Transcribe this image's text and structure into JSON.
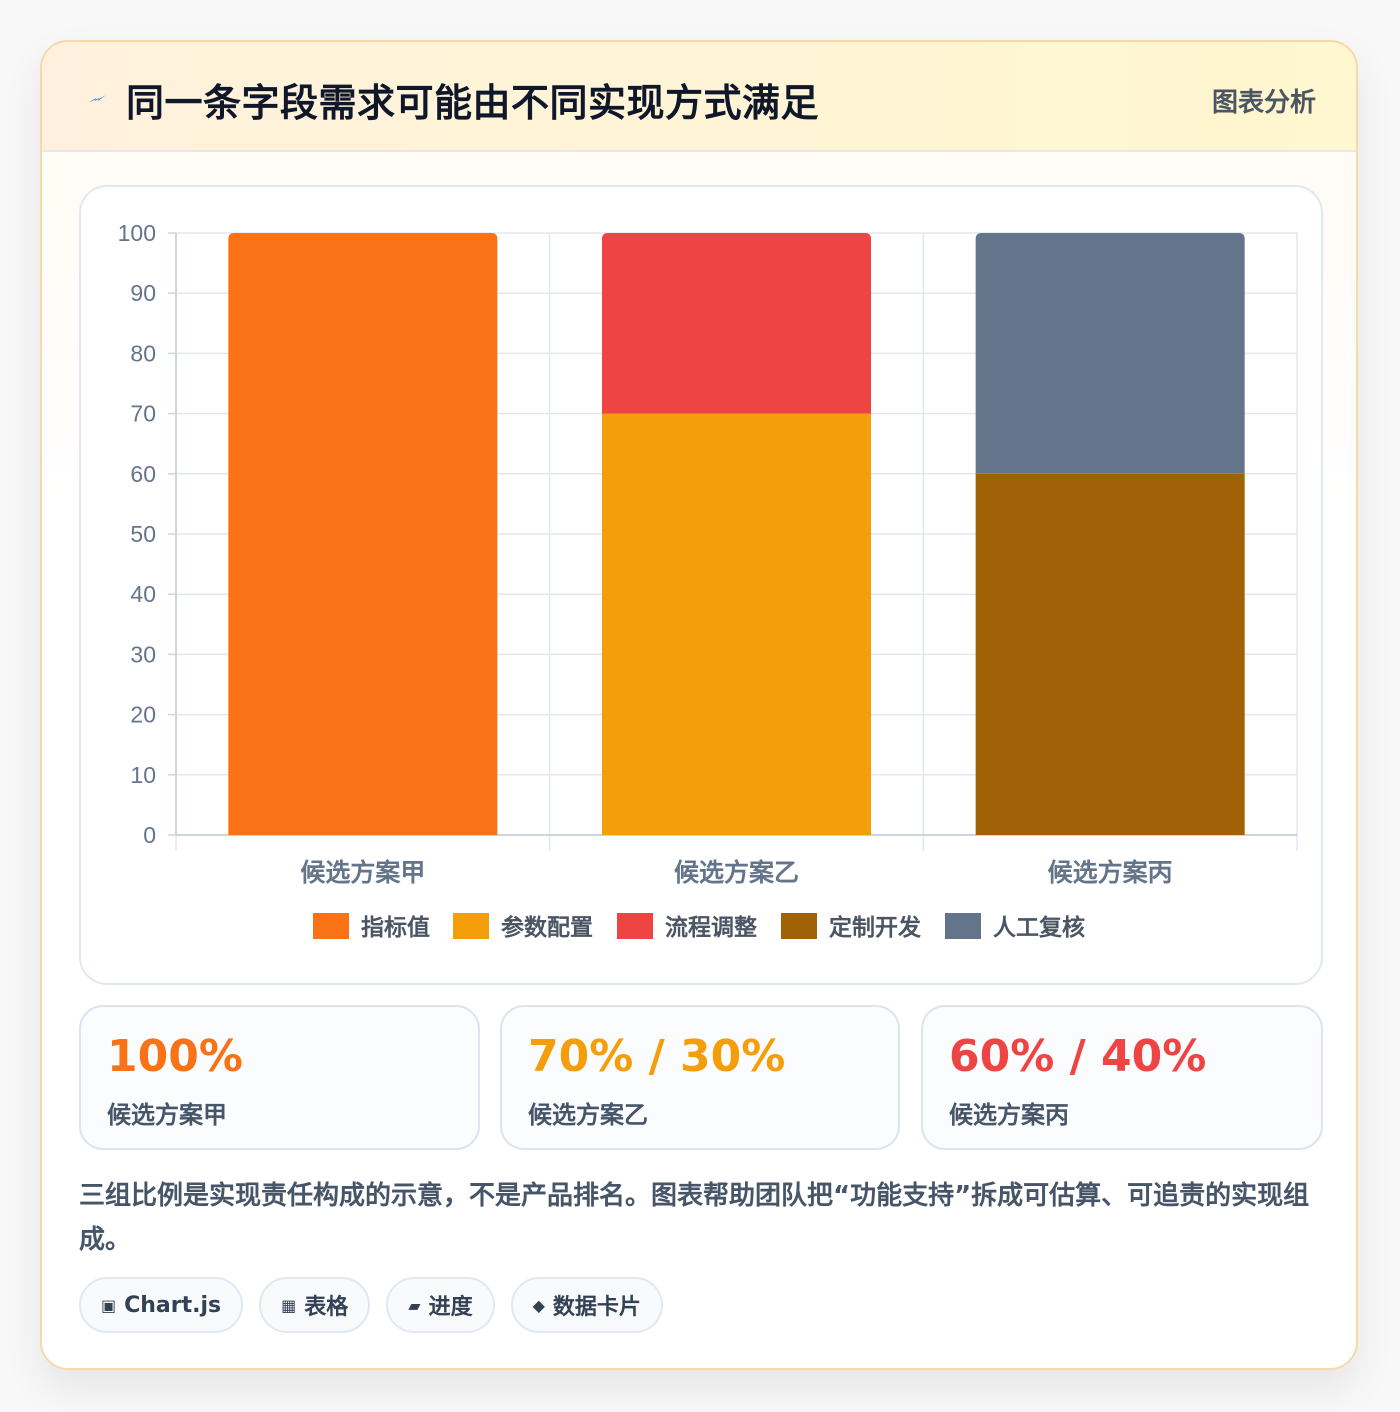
{
  "header": {
    "icon": "lightning-icon",
    "title": "同一条字段需求可能由不同实现方式满足",
    "badge": "图表分析"
  },
  "chart_data": {
    "type": "bar",
    "stacked": true,
    "categories": [
      "候选方案甲",
      "候选方案乙",
      "候选方案丙"
    ],
    "series": [
      {
        "name": "指标值",
        "color": "#f97316",
        "values": [
          100,
          0,
          0
        ]
      },
      {
        "name": "参数配置",
        "color": "#f59e0b",
        "values": [
          0,
          70,
          0
        ]
      },
      {
        "name": "流程调整",
        "color": "#ef4444",
        "values": [
          0,
          30,
          0
        ]
      },
      {
        "name": "定制开发",
        "color": "#a16207",
        "values": [
          0,
          0,
          60
        ]
      },
      {
        "name": "人工复核",
        "color": "#64748b",
        "values": [
          0,
          0,
          40
        ]
      }
    ],
    "ylim": [
      0,
      100
    ],
    "yticks": [
      0,
      10,
      20,
      30,
      40,
      50,
      60,
      70,
      80,
      90,
      100
    ],
    "grid": true,
    "legend": "bottom"
  },
  "stats": [
    {
      "value": "100%",
      "label": "候选方案甲",
      "color": "#f97316"
    },
    {
      "value": "70% / 30%",
      "label": "候选方案乙",
      "color": "#f59e0b"
    },
    {
      "value": "60% / 40%",
      "label": "候选方案丙",
      "color": "#ef4444"
    }
  ],
  "note": "三组比例是实现责任构成的示意，不是产品排名。图表帮助团队把“功能支持”拆成可估算、可追责的实现组成。",
  "tags": [
    {
      "icon": "chart-icon",
      "glyph": "▣",
      "label": "Chart.js"
    },
    {
      "icon": "table-icon",
      "glyph": "▦",
      "label": "表格"
    },
    {
      "icon": "progress-icon",
      "glyph": "▰",
      "label": "进度"
    },
    {
      "icon": "diamond-icon",
      "glyph": "◆",
      "label": "数据卡片"
    }
  ]
}
